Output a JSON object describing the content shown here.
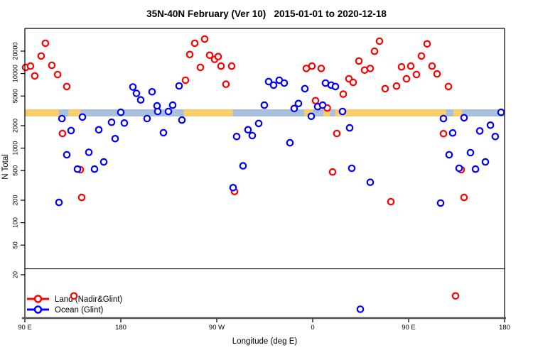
{
  "title": "35N-40N February (Ver 10)   2015-01-01 to 2020-12-18",
  "chart_data": {
    "type": "scatter",
    "title": "35N-40N February (Ver 10)   2015-01-01 to 2020-12-18",
    "xlabel": "Longitude (deg E)",
    "ylabel": "N Total",
    "x_axis": {
      "range_deg": [
        90,
        540
      ],
      "tick_positions_deg": [
        90,
        180,
        270,
        360,
        450,
        540
      ],
      "tick_labels": [
        "90 E",
        "180",
        "90 W",
        "0",
        "90 E",
        "180"
      ]
    },
    "y_axis": {
      "scale": "log10",
      "ticks": [
        20,
        50,
        100,
        200,
        500,
        1000,
        2000,
        5000,
        10000,
        20000
      ],
      "range": [
        5,
        42000
      ]
    },
    "divider_n": 24,
    "grid": "off",
    "legend": {
      "position": "bottom-left"
    },
    "land_ocean_band": {
      "n_range": [
        2660,
        3310
      ],
      "ocean_color": "#A9C0DC",
      "land_color": "#F7CE6B",
      "land_segments_deg": [
        [
          90,
          122
        ],
        [
          131,
          142
        ],
        [
          239,
          285
        ],
        [
          352,
          360
        ],
        [
          370,
          376
        ],
        [
          381,
          485
        ],
        [
          492,
          500
        ]
      ]
    },
    "series": [
      {
        "name": "Land (Nadir&Glint)",
        "color": "#FF0000",
        "points": [
          [
            90.7,
            12100
          ],
          [
            95.3,
            12600
          ],
          [
            99.3,
            9300
          ],
          [
            105.3,
            17200
          ],
          [
            109.3,
            25500
          ],
          [
            115.3,
            12900
          ],
          [
            120.7,
            9700
          ],
          [
            125.3,
            1570
          ],
          [
            129.3,
            6700
          ],
          [
            136,
            10.4
          ],
          [
            142,
            513
          ],
          [
            143.3,
            218
          ],
          [
            240.7,
            8130
          ],
          [
            244.7,
            18000
          ],
          [
            249.3,
            25500
          ],
          [
            254.7,
            12100
          ],
          [
            258.7,
            29000
          ],
          [
            263.3,
            17600
          ],
          [
            268,
            15500
          ],
          [
            271.3,
            16900
          ],
          [
            274,
            12600
          ],
          [
            278.7,
            7200
          ],
          [
            284,
            12600
          ],
          [
            286.7,
            262
          ],
          [
            354,
            11700
          ],
          [
            359.3,
            12600
          ],
          [
            362.7,
            4330
          ],
          [
            368,
            11700
          ],
          [
            373.7,
            3450
          ],
          [
            378.7,
            479
          ],
          [
            382.7,
            1570
          ],
          [
            388.7,
            5300
          ],
          [
            394,
            8500
          ],
          [
            398,
            7600
          ],
          [
            403.3,
            14700
          ],
          [
            408.7,
            11100
          ],
          [
            414,
            11700
          ],
          [
            418,
            19900
          ],
          [
            422.7,
            27200
          ],
          [
            428,
            6270
          ],
          [
            433.3,
            191
          ],
          [
            438.7,
            6800
          ],
          [
            443.3,
            12300
          ],
          [
            448,
            8500
          ],
          [
            452,
            12600
          ],
          [
            457.3,
            9700
          ],
          [
            462,
            17200
          ],
          [
            467.3,
            25000
          ],
          [
            472,
            12600
          ],
          [
            476.7,
            9900
          ],
          [
            482.7,
            1560
          ],
          [
            487.3,
            6700
          ],
          [
            494,
            10.4
          ],
          [
            499.3,
            513
          ],
          [
            502,
            218
          ]
        ]
      },
      {
        "name": "Ocean (Glint)",
        "color": "#0000FF",
        "points": [
          [
            122,
            187
          ],
          [
            124.7,
            2490
          ],
          [
            129.3,
            813
          ],
          [
            133.3,
            1720
          ],
          [
            139.3,
            523
          ],
          [
            144,
            2610
          ],
          [
            150,
            879
          ],
          [
            155.3,
            523
          ],
          [
            159.3,
            1760
          ],
          [
            164,
            652
          ],
          [
            171.3,
            2220
          ],
          [
            174.7,
            1340
          ],
          [
            180,
            3020
          ],
          [
            183.3,
            2170
          ],
          [
            191.3,
            6600
          ],
          [
            194.7,
            5420
          ],
          [
            198.7,
            4430
          ],
          [
            204.7,
            2490
          ],
          [
            209.3,
            5690
          ],
          [
            214,
            3690
          ],
          [
            214.7,
            3100
          ],
          [
            220,
            1610
          ],
          [
            224.7,
            3100
          ],
          [
            228.7,
            3770
          ],
          [
            234.7,
            6830
          ],
          [
            237.3,
            2380
          ],
          [
            285.3,
            295
          ],
          [
            288.7,
            1430
          ],
          [
            294.7,
            578
          ],
          [
            299.3,
            1760
          ],
          [
            303.3,
            1470
          ],
          [
            309.3,
            2140
          ],
          [
            314.7,
            3770
          ],
          [
            318.7,
            7800
          ],
          [
            323.3,
            7000
          ],
          [
            328.7,
            8130
          ],
          [
            333.3,
            7450
          ],
          [
            338.7,
            1180
          ],
          [
            342.7,
            3400
          ],
          [
            346.7,
            3960
          ],
          [
            352.7,
            6270
          ],
          [
            358.7,
            2670
          ],
          [
            364.7,
            3600
          ],
          [
            369.3,
            3770
          ],
          [
            372,
            7450
          ],
          [
            377.3,
            7000
          ],
          [
            381.3,
            6700
          ],
          [
            388,
            3100
          ],
          [
            394.7,
            1870
          ],
          [
            396.7,
            536
          ],
          [
            404.7,
            6.9
          ],
          [
            414,
            348
          ],
          [
            480,
            183
          ],
          [
            482.7,
            2490
          ],
          [
            488,
            813
          ],
          [
            491.3,
            1600
          ],
          [
            497.3,
            536
          ],
          [
            502,
            2550
          ],
          [
            508,
            869
          ],
          [
            512.7,
            523
          ],
          [
            516.7,
            1700
          ],
          [
            522,
            652
          ],
          [
            526.7,
            2030
          ],
          [
            531.3,
            1430
          ],
          [
            536.7,
            3020
          ]
        ]
      }
    ]
  }
}
